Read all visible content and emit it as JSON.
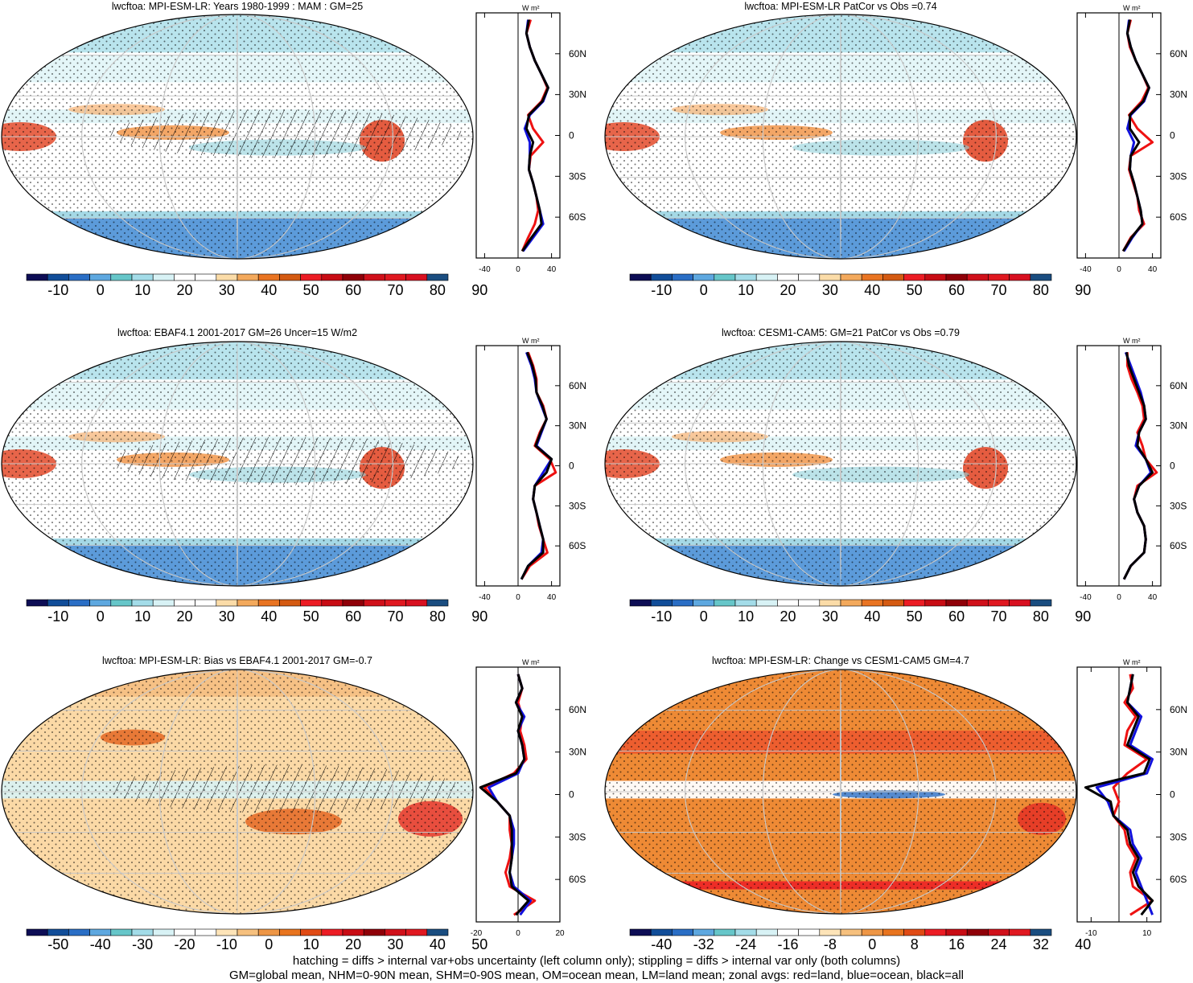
{
  "figure": {
    "footer_line1": "hatching = diffs > internal var+obs uncertainty (left column only); stippling = diffs > internal var only (both columns)",
    "footer_line2": "GM=global mean, NHM=0-90N mean, SHM=0-90S mean, OM=ocean mean, LM=land mean; zonal avgs: red=land, blue=ocean, black=all",
    "units_label": "W m²",
    "colors": {
      "land": "#ee1111",
      "ocean": "#1111dd",
      "all": "#000000",
      "grid": "#c8c8c8"
    }
  },
  "chart_data": [
    {
      "type": "heatmap",
      "title": "lwcftoa: MPI-ESM-LR: Years 1980-1999 : MAM : GM=25",
      "colorbar": {
        "labels": [
          "-10",
          "0",
          "10",
          "20",
          "30",
          "40",
          "50",
          "60",
          "70",
          "80",
          "90"
        ],
        "range": [
          -15,
          95
        ]
      },
      "zonal": {
        "xlim": [
          -50,
          50
        ],
        "xticks": [
          "-40",
          "0",
          "40"
        ],
        "lat_labels": [
          "60N",
          "30N",
          "0",
          "30S",
          "60S"
        ],
        "lat": [
          85,
          75,
          65,
          55,
          45,
          35,
          25,
          15,
          5,
          -5,
          -15,
          -25,
          -35,
          -45,
          -55,
          -65,
          -75,
          -85
        ],
        "land": [
          15,
          10,
          14,
          20,
          28,
          35,
          28,
          12,
          18,
          30,
          15,
          13,
          18,
          22,
          24,
          20,
          12,
          5
        ],
        "ocean": [
          12,
          10,
          14,
          20,
          28,
          36,
          30,
          14,
          8,
          14,
          14,
          13,
          18,
          22,
          26,
          30,
          18,
          6
        ],
        "all": [
          13,
          10,
          14,
          20,
          28,
          36,
          29,
          13,
          10,
          18,
          14,
          13,
          18,
          22,
          26,
          28,
          16,
          5
        ]
      }
    },
    {
      "type": "heatmap",
      "title": "lwcftoa: MPI-ESM-LR PatCor vs Obs =0.74",
      "colorbar": {
        "labels": [
          "-10",
          "0",
          "10",
          "20",
          "30",
          "40",
          "50",
          "60",
          "70",
          "80",
          "90"
        ],
        "range": [
          -15,
          95
        ]
      },
      "zonal": {
        "xlim": [
          -50,
          50
        ],
        "xticks": [
          "-40",
          "0",
          "40"
        ],
        "lat_labels": [
          "60N",
          "30N",
          "0",
          "30S",
          "60S"
        ],
        "lat": [
          85,
          75,
          65,
          55,
          45,
          35,
          25,
          15,
          5,
          -5,
          -15,
          -25,
          -35,
          -45,
          -55,
          -65,
          -75,
          -85
        ],
        "land": [
          14,
          10,
          13,
          20,
          28,
          35,
          27,
          12,
          22,
          40,
          14,
          12,
          17,
          22,
          24,
          30,
          14,
          5
        ],
        "ocean": [
          12,
          10,
          14,
          20,
          28,
          36,
          30,
          14,
          10,
          18,
          14,
          13,
          18,
          22,
          26,
          28,
          16,
          6
        ],
        "all": [
          13,
          10,
          14,
          20,
          28,
          36,
          29,
          13,
          13,
          24,
          14,
          13,
          18,
          22,
          26,
          28,
          15,
          5
        ]
      }
    },
    {
      "type": "heatmap",
      "title": "lwcftoa: EBAF4.1 2001-2017 GM=26 Uncer=15 W/m2",
      "colorbar": {
        "labels": [
          "-10",
          "0",
          "10",
          "20",
          "30",
          "40",
          "50",
          "60",
          "70",
          "80",
          "90"
        ],
        "range": [
          -15,
          95
        ]
      },
      "zonal": {
        "xlim": [
          -50,
          50
        ],
        "xticks": [
          "-40",
          "0",
          "40"
        ],
        "lat_labels": [
          "60N",
          "30N",
          "0",
          "30S",
          "60S"
        ],
        "lat": [
          85,
          75,
          65,
          55,
          45,
          35,
          25,
          15,
          5,
          -5,
          -15,
          -25,
          -35,
          -45,
          -55,
          -65,
          -75,
          -85
        ],
        "land": [
          12,
          18,
          22,
          22,
          30,
          34,
          26,
          20,
          38,
          45,
          20,
          18,
          22,
          25,
          30,
          35,
          14,
          4
        ],
        "ocean": [
          10,
          16,
          20,
          22,
          28,
          34,
          28,
          22,
          40,
          30,
          20,
          18,
          22,
          26,
          30,
          28,
          12,
          4
        ],
        "all": [
          11,
          17,
          21,
          22,
          29,
          34,
          27,
          21,
          40,
          34,
          20,
          18,
          22,
          26,
          30,
          30,
          12,
          4
        ]
      }
    },
    {
      "type": "heatmap",
      "title": "lwcftoa: CESM1-CAM5: GM=21 PatCor vs Obs =0.79",
      "colorbar": {
        "labels": [
          "-10",
          "0",
          "10",
          "20",
          "30",
          "40",
          "50",
          "60",
          "70",
          "80",
          "90"
        ],
        "range": [
          -15,
          95
        ]
      },
      "zonal": {
        "xlim": [
          -50,
          50
        ],
        "xticks": [
          "-40",
          "0",
          "40"
        ],
        "lat_labels": [
          "60N",
          "30N",
          "0",
          "30S",
          "60S"
        ],
        "lat": [
          85,
          75,
          65,
          55,
          45,
          35,
          25,
          15,
          5,
          -5,
          -15,
          -25,
          -35,
          -45,
          -55,
          -65,
          -75,
          -85
        ],
        "land": [
          10,
          10,
          15,
          22,
          28,
          30,
          22,
          28,
          32,
          45,
          22,
          18,
          22,
          30,
          32,
          30,
          14,
          6
        ],
        "ocean": [
          8,
          14,
          20,
          26,
          30,
          32,
          24,
          20,
          32,
          38,
          24,
          18,
          22,
          30,
          32,
          30,
          14,
          6
        ],
        "all": [
          9,
          12,
          18,
          24,
          30,
          32,
          24,
          22,
          32,
          40,
          24,
          18,
          22,
          30,
          32,
          30,
          14,
          6
        ]
      }
    },
    {
      "type": "heatmap",
      "title": "lwcftoa: MPI-ESM-LR: Bias vs EBAF4.1 2001-2017 GM=-0.7",
      "colorbar": {
        "labels": [
          "-50",
          "-40",
          "-30",
          "-20",
          "-10",
          "0",
          "10",
          "20",
          "30",
          "40",
          "50"
        ],
        "range": [
          -55,
          55
        ]
      },
      "zonal": {
        "xlim": [
          -20,
          20
        ],
        "xticks": [
          "-20",
          "0",
          "20"
        ],
        "lat_labels": [
          "60N",
          "30N",
          "0",
          "30S",
          "60S"
        ],
        "lat": [
          85,
          75,
          65,
          55,
          45,
          35,
          25,
          15,
          5,
          -5,
          -15,
          -25,
          -35,
          -45,
          -55,
          -65,
          -75,
          -85
        ],
        "land": [
          0,
          2,
          0,
          2,
          1,
          3,
          4,
          -2,
          -16,
          -10,
          -4,
          -4,
          -3,
          -4,
          -6,
          -4,
          8,
          -2
        ],
        "ocean": [
          0,
          2,
          -1,
          3,
          0,
          2,
          3,
          0,
          -14,
          -10,
          -4,
          -2,
          -2,
          -3,
          -4,
          -2,
          6,
          1
        ],
        "all": [
          0,
          2,
          -1,
          2,
          0,
          2,
          3,
          -1,
          -18,
          -10,
          -4,
          -3,
          -3,
          -3,
          -4,
          -3,
          5,
          -1
        ]
      }
    },
    {
      "type": "heatmap",
      "title": "lwcftoa: MPI-ESM-LR: Change vs CESM1-CAM5 GM=4.7",
      "colorbar": {
        "labels": [
          "-40",
          "-32",
          "-24",
          "-16",
          "-8",
          "0",
          "8",
          "16",
          "24",
          "32",
          "40"
        ],
        "range": [
          -44,
          44
        ]
      },
      "zonal": {
        "xlim": [
          -15,
          15
        ],
        "xticks": [
          "-10",
          "10"
        ],
        "lat_labels": [
          "60N",
          "30N",
          "0",
          "30S",
          "60S"
        ],
        "lat": [
          85,
          75,
          65,
          55,
          45,
          35,
          25,
          15,
          5,
          -5,
          -15,
          -25,
          -35,
          -45,
          -55,
          -65,
          -75,
          -85
        ],
        "land": [
          4,
          5,
          2,
          6,
          3,
          2,
          10,
          3,
          -2,
          0,
          -2,
          2,
          3,
          6,
          4,
          5,
          12,
          4
        ],
        "ocean": [
          5,
          4,
          3,
          8,
          6,
          4,
          12,
          10,
          -8,
          -4,
          -2,
          4,
          5,
          8,
          6,
          8,
          10,
          12
        ],
        "all": [
          5,
          4,
          3,
          7,
          5,
          3,
          11,
          9,
          -12,
          -3,
          -2,
          3,
          4,
          7,
          5,
          7,
          12,
          8
        ]
      }
    }
  ]
}
